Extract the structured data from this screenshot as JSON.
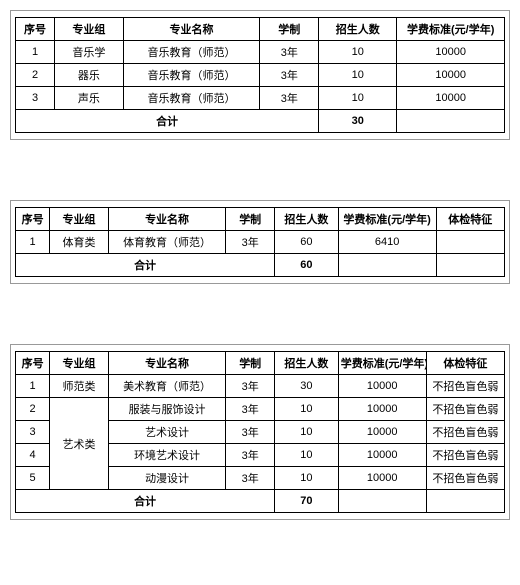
{
  "tables": [
    {
      "columns": [
        "序号",
        "专业组",
        "专业名称",
        "学制",
        "招生人数",
        "学费标准(元/学年)"
      ],
      "widths": [
        "8%",
        "14%",
        "28%",
        "12%",
        "16%",
        "22%"
      ],
      "rows": [
        [
          "1",
          "音乐学",
          "音乐教育（师范）",
          "3年",
          "10",
          "10000"
        ],
        [
          "2",
          "器乐",
          "音乐教育（师范）",
          "3年",
          "10",
          "10000"
        ],
        [
          "3",
          "声乐",
          "音乐教育（师范）",
          "3年",
          "10",
          "10000"
        ]
      ],
      "sum": {
        "label": "合计",
        "labelSpan": 4,
        "values": [
          "30",
          ""
        ]
      }
    },
    {
      "columns": [
        "序号",
        "专业组",
        "专业名称",
        "学制",
        "招生人数",
        "学费标准(元/学年)",
        "体检特征"
      ],
      "widths": [
        "7%",
        "12%",
        "24%",
        "10%",
        "13%",
        "20%",
        "14%"
      ],
      "rows": [
        [
          "1",
          "体育类",
          "体育教育（师范）",
          "3年",
          "60",
          "6410",
          ""
        ]
      ],
      "sum": {
        "label": "合计",
        "labelSpan": 4,
        "values": [
          "60",
          "",
          ""
        ]
      }
    },
    {
      "columns": [
        "序号",
        "专业组",
        "专业名称",
        "学制",
        "招生人数",
        "学费标准(元/学年)",
        "体检特征"
      ],
      "widths": [
        "7%",
        "12%",
        "24%",
        "10%",
        "13%",
        "18%",
        "16%"
      ],
      "rows": [
        [
          "1",
          {
            "text": "师范类",
            "rowspan": 1
          },
          "美术教育（师范）",
          "3年",
          "30",
          "10000",
          "不招色盲色弱"
        ],
        [
          "2",
          {
            "text": "艺术类",
            "rowspan": 4
          },
          "服装与服饰设计",
          "3年",
          "10",
          "10000",
          "不招色盲色弱"
        ],
        [
          "3",
          null,
          "艺术设计",
          "3年",
          "10",
          "10000",
          "不招色盲色弱"
        ],
        [
          "4",
          null,
          "环境艺术设计",
          "3年",
          "10",
          "10000",
          "不招色盲色弱"
        ],
        [
          "5",
          null,
          "动漫设计",
          "3年",
          "10",
          "10000",
          "不招色盲色弱"
        ]
      ],
      "sum": {
        "label": "合计",
        "labelSpan": 4,
        "values": [
          "70",
          "",
          ""
        ]
      }
    }
  ]
}
